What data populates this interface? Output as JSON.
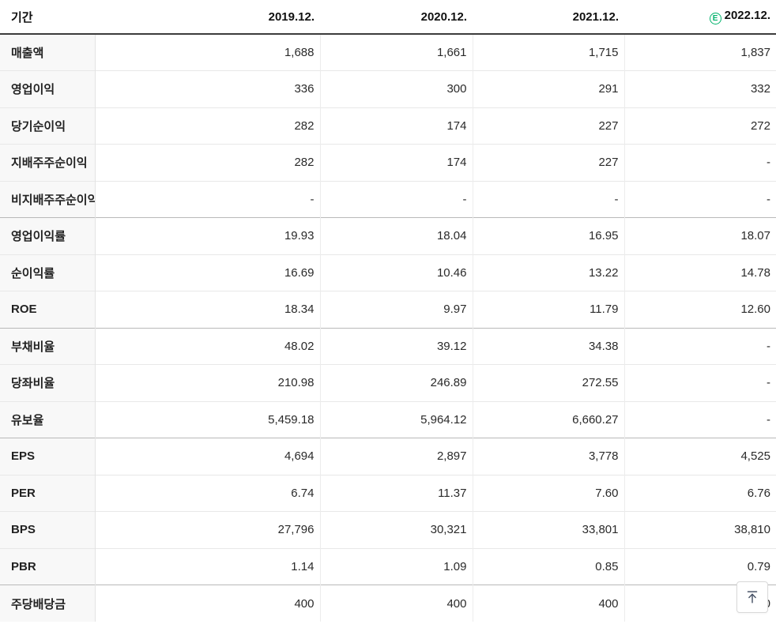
{
  "table": {
    "header": {
      "period_label": "기간",
      "columns": [
        "2019.12.",
        "2020.12.",
        "2021.12.",
        "2022.12."
      ],
      "estimate_badge": "E"
    },
    "rows": [
      {
        "label": "매출액",
        "values": [
          "1,688",
          "1,661",
          "1,715",
          "1,837"
        ],
        "group_start": false
      },
      {
        "label": "영업이익",
        "values": [
          "336",
          "300",
          "291",
          "332"
        ],
        "group_start": false
      },
      {
        "label": "당기순이익",
        "values": [
          "282",
          "174",
          "227",
          "272"
        ],
        "group_start": false
      },
      {
        "label": "지배주주순이익",
        "values": [
          "282",
          "174",
          "227",
          "-"
        ],
        "group_start": false
      },
      {
        "label": "비지배주주순이익",
        "values": [
          "-",
          "-",
          "-",
          "-"
        ],
        "group_start": false
      },
      {
        "label": "영업이익률",
        "values": [
          "19.93",
          "18.04",
          "16.95",
          "18.07"
        ],
        "group_start": true
      },
      {
        "label": "순이익률",
        "values": [
          "16.69",
          "10.46",
          "13.22",
          "14.78"
        ],
        "group_start": false
      },
      {
        "label": "ROE",
        "values": [
          "18.34",
          "9.97",
          "11.79",
          "12.60"
        ],
        "group_start": false
      },
      {
        "label": "부채비율",
        "values": [
          "48.02",
          "39.12",
          "34.38",
          "-"
        ],
        "group_start": true
      },
      {
        "label": "당좌비율",
        "values": [
          "210.98",
          "246.89",
          "272.55",
          "-"
        ],
        "group_start": false
      },
      {
        "label": "유보율",
        "values": [
          "5,459.18",
          "5,964.12",
          "6,660.27",
          "-"
        ],
        "group_start": false
      },
      {
        "label": "EPS",
        "values": [
          "4,694",
          "2,897",
          "3,778",
          "4,525"
        ],
        "group_start": true
      },
      {
        "label": "PER",
        "values": [
          "6.74",
          "11.37",
          "7.60",
          "6.76"
        ],
        "group_start": false
      },
      {
        "label": "BPS",
        "values": [
          "27,796",
          "30,321",
          "33,801",
          "38,810"
        ],
        "group_start": false
      },
      {
        "label": "PBR",
        "values": [
          "1.14",
          "1.09",
          "0.85",
          "0.79"
        ],
        "group_start": false
      },
      {
        "label": "주당배당금",
        "values": [
          "400",
          "400",
          "400",
          "400"
        ],
        "group_start": true
      }
    ]
  },
  "colors": {
    "estimate_green": "#00b26b",
    "header_border": "#3c3c3c",
    "group_border": "#b9b9b9",
    "label_bg": "#f8f8f8"
  },
  "scroll_top_button": {
    "icon": "arrow-up-to-top-icon"
  }
}
